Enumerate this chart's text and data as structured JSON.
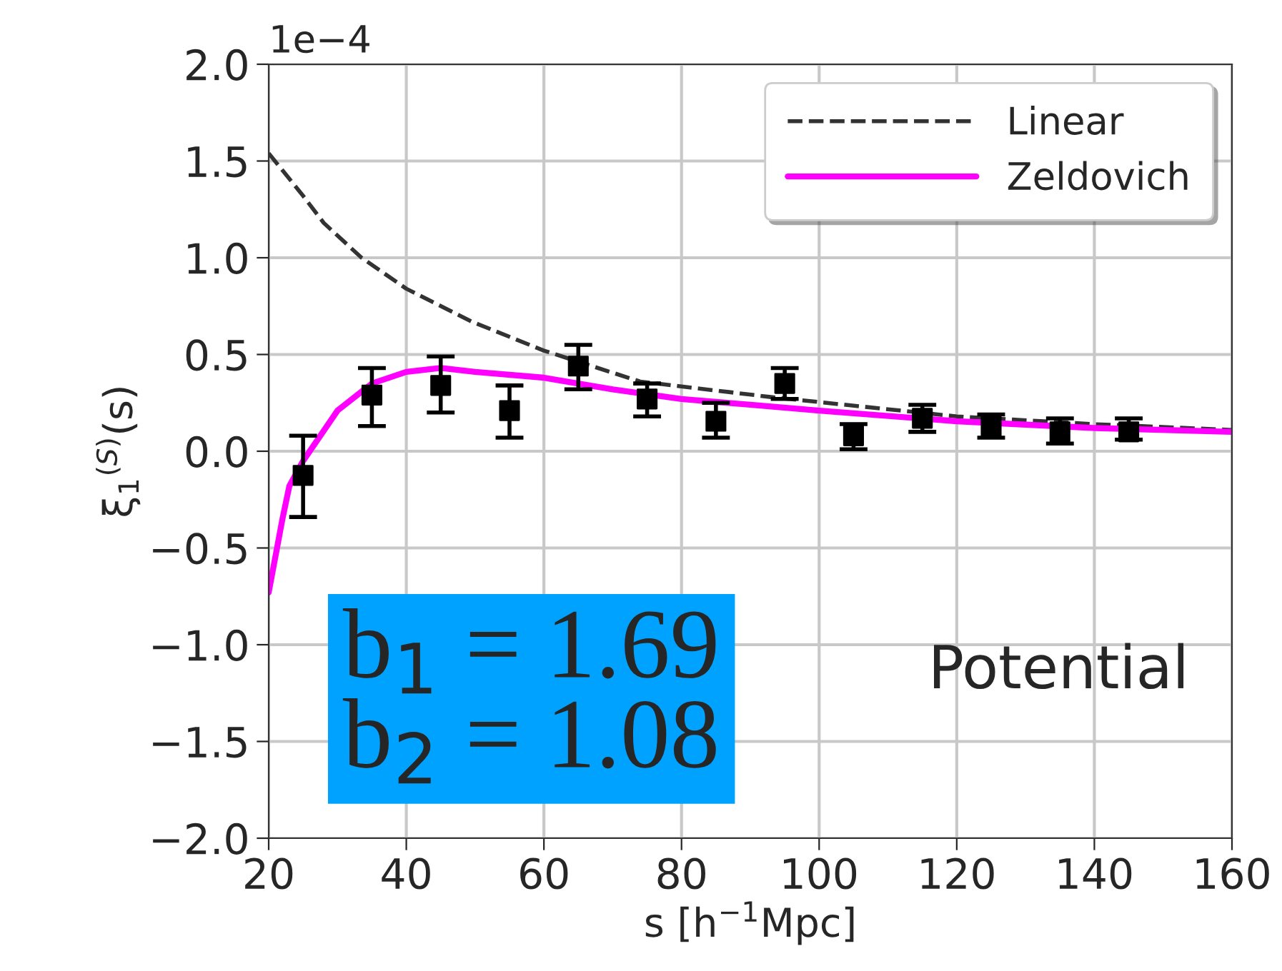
{
  "chart_data": {
    "type": "line",
    "xlabel": "s [h$^{−1}$Mpc]",
    "ylabel": "ξ$_{1}$$^{(S)}$(s)",
    "xlim": [
      20,
      160
    ],
    "xticks": [
      20,
      40,
      60,
      80,
      100,
      120,
      140,
      160
    ],
    "ylim": [
      -2.0,
      2.0
    ],
    "yticks": [
      {
        "value": -2.0,
        "label": "−2.0"
      },
      {
        "value": -1.5,
        "label": "−1.5"
      },
      {
        "value": -1.0,
        "label": "−1.0"
      },
      {
        "value": -0.5,
        "label": "−0.5"
      },
      {
        "value": 0.0,
        "label": "0.0"
      },
      {
        "value": 0.5,
        "label": "0.5"
      },
      {
        "value": 1.0,
        "label": "1.0"
      },
      {
        "value": 1.5,
        "label": "1.5"
      },
      {
        "value": 2.0,
        "label": "2.0"
      }
    ],
    "grid": true,
    "legend": "top right",
    "series": [
      {
        "name": "Linear",
        "color": "#333333",
        "line_style": "dashed",
        "x": [
          20,
          25,
          28,
          33.5,
          40,
          49.5,
          60,
          74,
          93,
          120,
          140,
          160
        ],
        "values": [
          1.54,
          1.32,
          1.18,
          1.0,
          0.84,
          0.67,
          0.52,
          0.36,
          0.28,
          0.18,
          0.14,
          0.11
        ]
      },
      {
        "name": "Zeldovich",
        "color": "#ff00ff",
        "line_style": "solid",
        "x": [
          20,
          22,
          23,
          25,
          30,
          35,
          40,
          45,
          50,
          60,
          70,
          80,
          90,
          100,
          120,
          140,
          160
        ],
        "values": [
          -0.73,
          -0.35,
          -0.18,
          -0.05,
          0.21,
          0.35,
          0.41,
          0.43,
          0.41,
          0.38,
          0.32,
          0.27,
          0.24,
          0.21,
          0.155,
          0.12,
          0.1
        ]
      },
      {
        "type": "scatter",
        "color": "#000000",
        "marker": "square",
        "x": [
          25,
          35,
          45,
          55,
          65,
          75,
          85,
          95,
          105,
          115,
          125,
          135,
          145
        ],
        "values": [
          -0.125,
          0.29,
          0.34,
          0.21,
          0.44,
          0.27,
          0.155,
          0.35,
          0.08,
          0.17,
          0.13,
          0.1,
          0.1
        ],
        "errors": [
          [
            -0.34,
            0.08
          ],
          [
            0.13,
            0.43
          ],
          [
            0.2,
            0.49
          ],
          [
            0.07,
            0.34
          ],
          [
            0.32,
            0.55
          ],
          [
            0.18,
            0.35
          ],
          [
            0.07,
            0.25
          ],
          [
            0.27,
            0.43
          ],
          [
            0.01,
            0.14
          ],
          [
            0.1,
            0.24
          ],
          [
            0.07,
            0.19
          ],
          [
            0.04,
            0.17
          ],
          [
            0.06,
            0.17
          ]
        ]
      }
    ],
    "annotations": [
      "1e−4",
      "b$_{1}$ = 1.69\nb$_{2}$ = 1.08",
      "Potential"
    ]
  }
}
